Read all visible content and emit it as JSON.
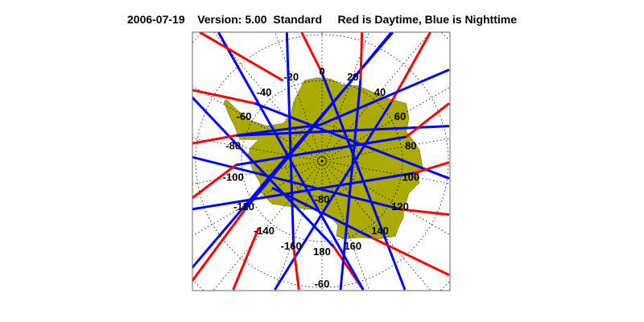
{
  "title": {
    "date": "2006-07-19",
    "version": "Version: 5.00",
    "mode": "Standard",
    "legend": "Red is Daytime, Blue is Nighttime"
  },
  "map": {
    "projection": "south polar",
    "land_color": "#aaaa00",
    "day_color": "#ff0000",
    "night_color": "#0000ff",
    "longitude_labels": [
      "0",
      "20",
      "40",
      "60",
      "80",
      "100",
      "120",
      "140",
      "160",
      "180",
      "-160",
      "-140",
      "-120",
      "-100",
      "-80",
      "-60",
      "-40",
      "-20"
    ],
    "latitude_labels": [
      "-80",
      "-60"
    ]
  }
}
